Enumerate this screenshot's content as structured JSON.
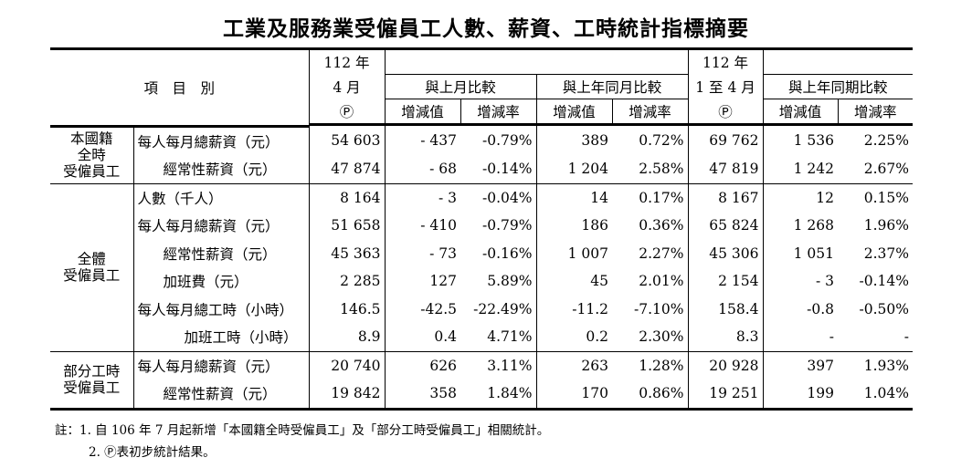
{
  "title": "工業及服務業受僱員工人數、薪資、工時統計指標摘要",
  "header": {
    "item_label": "項　目　別",
    "col_apr": [
      "112 年",
      "4 月",
      "Ⓟ"
    ],
    "prev_month": "與上月比較",
    "prev_year_month": "與上年同月比較",
    "col_jan_apr": [
      "112 年",
      "1 至 4 月",
      "Ⓟ"
    ],
    "prev_year_period": "與上年同期比較",
    "diff_value": "增減值",
    "diff_rate": "增減率"
  },
  "groups": [
    {
      "label_lines": [
        "本國籍",
        "全時",
        "受僱員工"
      ]
    },
    {
      "label_lines": [
        "全體",
        "受僱員工"
      ]
    },
    {
      "label_lines": [
        "部分工時",
        "受僱員工"
      ]
    }
  ],
  "rows": [
    {
      "item": "每人每月總薪資（元）",
      "apr": "54 603",
      "m_diff": "- 437",
      "m_rate": "-0.79%",
      "y_diff": "389",
      "y_rate": "0.72%",
      "ytd": "69 762",
      "p_diff": "1 536",
      "p_rate": "2.25%"
    },
    {
      "item": "經常性薪資（元）",
      "apr": "47 874",
      "m_diff": "- 68",
      "m_rate": "-0.14%",
      "y_diff": "1 204",
      "y_rate": "2.58%",
      "ytd": "47 819",
      "p_diff": "1 242",
      "p_rate": "2.67%"
    },
    {
      "item": "人數（千人）",
      "apr": "8 164",
      "m_diff": "- 3",
      "m_rate": "-0.04%",
      "y_diff": "14",
      "y_rate": "0.17%",
      "ytd": "8 167",
      "p_diff": "12",
      "p_rate": "0.15%"
    },
    {
      "item": "每人每月總薪資（元）",
      "apr": "51 658",
      "m_diff": "- 410",
      "m_rate": "-0.79%",
      "y_diff": "186",
      "y_rate": "0.36%",
      "ytd": "65 824",
      "p_diff": "1 268",
      "p_rate": "1.96%"
    },
    {
      "item": "經常性薪資（元）",
      "apr": "45 363",
      "m_diff": "- 73",
      "m_rate": "-0.16%",
      "y_diff": "1 007",
      "y_rate": "2.27%",
      "ytd": "45 306",
      "p_diff": "1 051",
      "p_rate": "2.37%"
    },
    {
      "item": "加班費（元）",
      "apr": "2 285",
      "m_diff": "127",
      "m_rate": "5.89%",
      "y_diff": "45",
      "y_rate": "2.01%",
      "ytd": "2 154",
      "p_diff": "- 3",
      "p_rate": "-0.14%"
    },
    {
      "item": "每人每月總工時（小時）",
      "apr": "146.5",
      "m_diff": "-42.5",
      "m_rate": "-22.49%",
      "y_diff": "-11.2",
      "y_rate": "-7.10%",
      "ytd": "158.4",
      "p_diff": "-0.8",
      "p_rate": "-0.50%"
    },
    {
      "item": "加班工時（小時）",
      "apr": "8.9",
      "m_diff": "0.4",
      "m_rate": "4.71%",
      "y_diff": "0.2",
      "y_rate": "2.30%",
      "ytd": "8.3",
      "p_diff": "-",
      "p_rate": "-"
    },
    {
      "item": "每人每月總薪資（元）",
      "apr": "20 740",
      "m_diff": "626",
      "m_rate": "3.11%",
      "y_diff": "263",
      "y_rate": "1.28%",
      "ytd": "20 928",
      "p_diff": "397",
      "p_rate": "1.93%"
    },
    {
      "item": "經常性薪資（元）",
      "apr": "19 842",
      "m_diff": "358",
      "m_rate": "1.84%",
      "y_diff": "170",
      "y_rate": "0.86%",
      "ytd": "19 251",
      "p_diff": "199",
      "p_rate": "1.04%"
    }
  ],
  "notes": [
    "註：1. 自 106 年 7 月起新增「本國籍全時受僱員工」及「部分工時受僱員工」相關統計。",
    "2. Ⓟ表初步統計結果。"
  ]
}
